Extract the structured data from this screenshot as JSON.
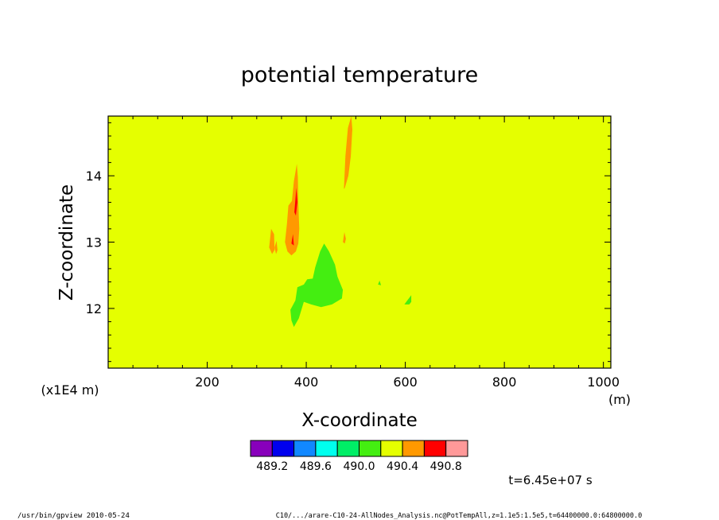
{
  "chart_data": {
    "type": "heatmap",
    "title": "potential temperature",
    "xlabel": "X-coordinate",
    "ylabel": "Z-coordinate",
    "x_unit": "(m)",
    "y_unit": "(x1E4 m)",
    "xlim": [
      0,
      1015
    ],
    "ylim": [
      11.1,
      14.9
    ],
    "x_ticks": [
      200,
      400,
      600,
      800,
      1000
    ],
    "x_tick_labels": [
      "200",
      "400",
      "600",
      "800",
      "1000"
    ],
    "y_ticks": [
      12,
      13,
      14
    ],
    "y_tick_labels": [
      "12",
      "13",
      "14"
    ],
    "background_level_color": "#e5ff00",
    "colorbar": {
      "colors": [
        "#8800bb",
        "#0000ee",
        "#1188ff",
        "#00ffee",
        "#00ee66",
        "#44ee11",
        "#e5ff00",
        "#ff9900",
        "#ff0000",
        "#ff9999"
      ],
      "labels": [
        "489.2",
        "489.6",
        "490.0",
        "490.4",
        "490.8"
      ]
    },
    "regions": [
      {
        "level": "green",
        "color": "#44ee11",
        "points": [
          [
            375,
            11.72
          ],
          [
            370,
            11.82
          ],
          [
            368,
            11.98
          ],
          [
            378,
            12.12
          ],
          [
            382,
            12.32
          ],
          [
            395,
            12.36
          ],
          [
            402,
            12.44
          ],
          [
            413,
            12.45
          ],
          [
            418,
            12.62
          ],
          [
            428,
            12.86
          ],
          [
            436,
            12.98
          ],
          [
            446,
            12.86
          ],
          [
            458,
            12.66
          ],
          [
            463,
            12.48
          ],
          [
            474,
            12.28
          ],
          [
            472,
            12.15
          ],
          [
            452,
            12.06
          ],
          [
            430,
            12.02
          ],
          [
            410,
            12.06
          ],
          [
            395,
            12.1
          ],
          [
            385,
            11.85
          ]
        ]
      },
      {
        "level": "green",
        "color": "#44ee11",
        "points": [
          [
            598,
            12.06
          ],
          [
            604,
            12.12
          ],
          [
            612,
            12.2
          ],
          [
            612,
            12.1
          ],
          [
            608,
            12.06
          ]
        ]
      },
      {
        "level": "green",
        "color": "#44ee11",
        "points": [
          [
            545,
            12.36
          ],
          [
            548,
            12.42
          ],
          [
            551,
            12.35
          ]
        ]
      },
      {
        "level": "orange",
        "color": "#ff9900",
        "points": [
          [
            357,
            13.0
          ],
          [
            361,
            13.28
          ],
          [
            364,
            13.55
          ],
          [
            371,
            13.62
          ],
          [
            375,
            13.92
          ],
          [
            381,
            14.18
          ],
          [
            383,
            13.98
          ],
          [
            384,
            13.58
          ],
          [
            386,
            13.2
          ],
          [
            384,
            12.98
          ],
          [
            379,
            12.86
          ],
          [
            370,
            12.8
          ],
          [
            362,
            12.86
          ]
        ]
      },
      {
        "level": "orange",
        "color": "#ff9900",
        "points": [
          [
            325,
            12.92
          ],
          [
            329,
            13.2
          ],
          [
            335,
            13.12
          ],
          [
            336,
            12.88
          ],
          [
            331,
            12.82
          ]
        ]
      },
      {
        "level": "orange",
        "color": "#ff9900",
        "points": [
          [
            336,
            12.92
          ],
          [
            340,
            13.02
          ],
          [
            342,
            12.88
          ],
          [
            339,
            12.82
          ]
        ]
      },
      {
        "level": "orange",
        "color": "#ff9900",
        "points": [
          [
            474,
            13.0
          ],
          [
            477,
            13.15
          ],
          [
            480,
            13.05
          ],
          [
            478,
            12.98
          ]
        ]
      },
      {
        "level": "orange",
        "color": "#ff9900",
        "points": [
          [
            476,
            13.8
          ],
          [
            479,
            14.3
          ],
          [
            484,
            14.72
          ],
          [
            491,
            14.9
          ],
          [
            493,
            14.7
          ],
          [
            490,
            14.3
          ],
          [
            485,
            14.0
          ],
          [
            478,
            13.82
          ]
        ]
      },
      {
        "level": "red",
        "color": "#ff0000",
        "points": [
          [
            376,
            13.45
          ],
          [
            380,
            13.82
          ],
          [
            382,
            13.6
          ],
          [
            379,
            13.4
          ]
        ]
      },
      {
        "level": "red",
        "color": "#ff0000",
        "points": [
          [
            370,
            12.98
          ],
          [
            373,
            13.12
          ],
          [
            375,
            12.95
          ]
        ]
      }
    ]
  },
  "timestamp": "t=6.45e+07 s",
  "footer": {
    "left": "/usr/bin/gpview  2010-05-24",
    "right": "C10/.../arare-C10-24-AllNodes_Analysis.nc@PotTempAll,z=1.1e5:1.5e5,t=64400000.0:64800000.0"
  }
}
